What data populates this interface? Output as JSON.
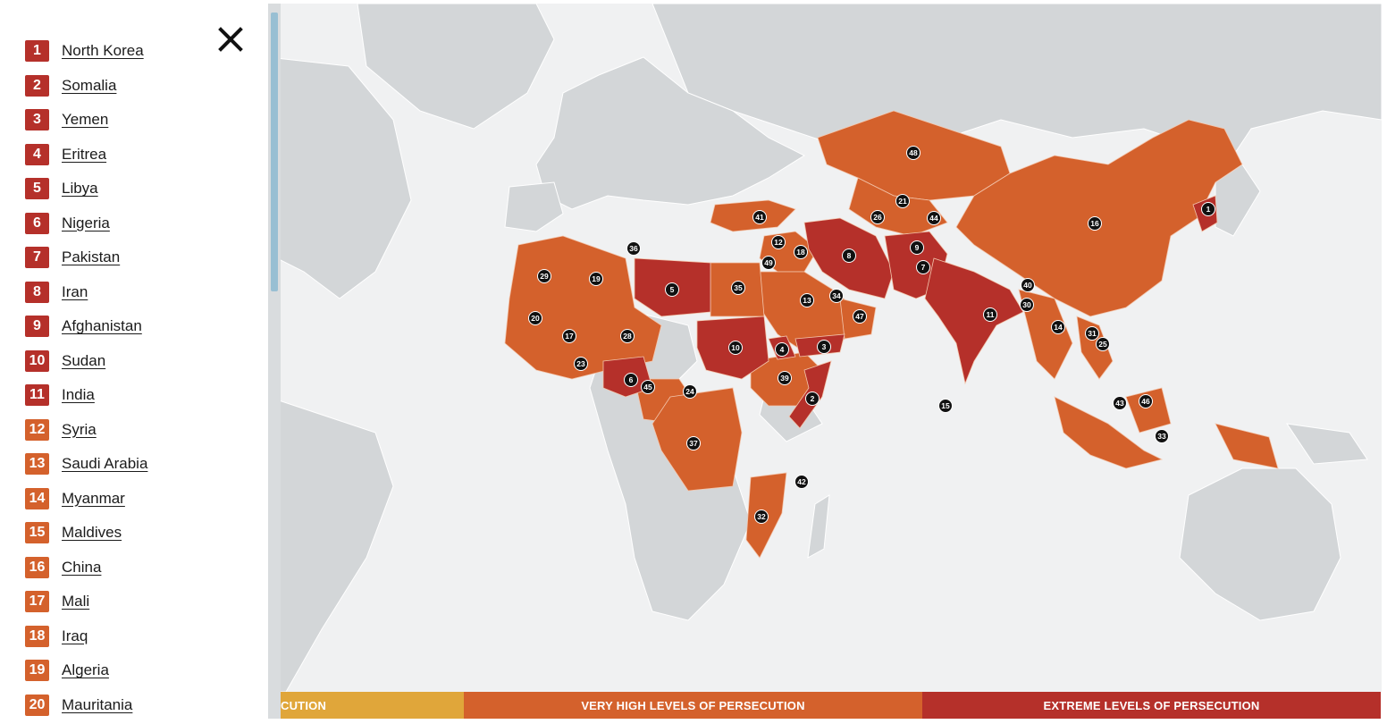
{
  "countries": [
    {
      "rank": "1",
      "name": "North Korea",
      "level": "extreme"
    },
    {
      "rank": "2",
      "name": "Somalia",
      "level": "extreme"
    },
    {
      "rank": "3",
      "name": "Yemen",
      "level": "extreme"
    },
    {
      "rank": "4",
      "name": "Eritrea",
      "level": "extreme"
    },
    {
      "rank": "5",
      "name": "Libya",
      "level": "extreme"
    },
    {
      "rank": "6",
      "name": "Nigeria",
      "level": "extreme"
    },
    {
      "rank": "7",
      "name": "Pakistan",
      "level": "extreme"
    },
    {
      "rank": "8",
      "name": "Iran",
      "level": "extreme"
    },
    {
      "rank": "9",
      "name": "Afghanistan",
      "level": "extreme"
    },
    {
      "rank": "10",
      "name": "Sudan",
      "level": "extreme"
    },
    {
      "rank": "11",
      "name": "India",
      "level": "extreme"
    },
    {
      "rank": "12",
      "name": "Syria",
      "level": "very-high"
    },
    {
      "rank": "13",
      "name": "Saudi Arabia",
      "level": "very-high"
    },
    {
      "rank": "14",
      "name": "Myanmar",
      "level": "very-high"
    },
    {
      "rank": "15",
      "name": "Maldives",
      "level": "very-high"
    },
    {
      "rank": "16",
      "name": "China",
      "level": "very-high"
    },
    {
      "rank": "17",
      "name": "Mali",
      "level": "very-high"
    },
    {
      "rank": "18",
      "name": "Iraq",
      "level": "very-high"
    },
    {
      "rank": "19",
      "name": "Algeria",
      "level": "very-high"
    },
    {
      "rank": "20",
      "name": "Mauritania",
      "level": "very-high"
    }
  ],
  "legend": {
    "high": "CUTION",
    "very_high": "VERY HIGH LEVELS OF PERSECUTION",
    "extreme": "EXTREME LEVELS OF PERSECUTION"
  },
  "map_markers": [
    "1",
    "2",
    "3",
    "4",
    "5",
    "6",
    "7",
    "8",
    "9",
    "10",
    "11",
    "12",
    "13",
    "14",
    "15",
    "16",
    "17",
    "18",
    "19",
    "20",
    "21",
    "23",
    "24",
    "25",
    "26",
    "28",
    "29",
    "30",
    "31",
    "32",
    "33",
    "34",
    "35",
    "36",
    "37",
    "39",
    "40",
    "41",
    "42",
    "43",
    "44",
    "45",
    "46",
    "47",
    "48",
    "49"
  ],
  "colors": {
    "extreme": "#b5302a",
    "very_high": "#d4612c",
    "high": "#e0a63a",
    "land": "#d3d6d8",
    "water": "#f0f1f2",
    "marker": "#111111"
  },
  "icons": {
    "close": "close-icon"
  }
}
